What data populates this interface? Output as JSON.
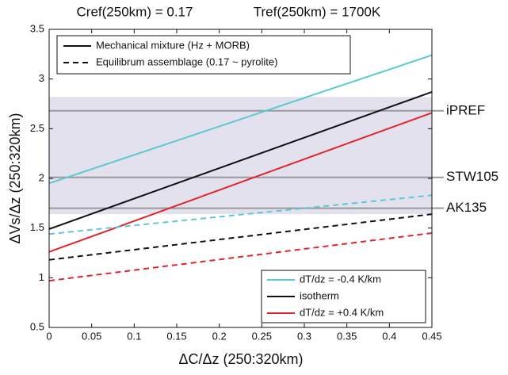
{
  "chart_data": {
    "type": "line",
    "titles": [
      "Cref(250km) = 0.17",
      "Tref(250km) = 1700K"
    ],
    "x_label": "ΔC/Δz (250:320km)",
    "y_label": "ΔVs/Δz (250:320km)",
    "x": [
      0,
      0.45
    ],
    "series": [
      {
        "color": "#5bc8d4",
        "dash": false,
        "values": [
          1.95,
          3.24
        ]
      },
      {
        "color": "#111111",
        "dash": false,
        "values": [
          1.49,
          2.87
        ]
      },
      {
        "color": "#e0262a",
        "dash": false,
        "values": [
          1.26,
          2.66
        ]
      },
      {
        "color": "#5bc8d4",
        "dash": true,
        "values": [
          1.44,
          1.83
        ]
      },
      {
        "color": "#111111",
        "dash": true,
        "values": [
          1.18,
          1.64
        ]
      },
      {
        "color": "#e0262a",
        "dash": true,
        "values": [
          0.97,
          1.45
        ]
      }
    ],
    "style_legend": [
      {
        "label": "Mechanical mixture (Hz + MORB)",
        "dash": false
      },
      {
        "label": "Equilibrum assemblage (0.17 ~ pyrolite)",
        "dash": true
      }
    ],
    "color_legend": [
      {
        "label": "dT/dz = -0.4 K/km",
        "color": "#5bc8d4"
      },
      {
        "label": "isotherm",
        "color": "#111111"
      },
      {
        "label": "dT/dz = +0.4 K/km",
        "color": "#e0262a"
      }
    ],
    "reference_lines": [
      {
        "label": "iPREF",
        "value": 2.68
      },
      {
        "label": "STW105",
        "value": 2.01
      },
      {
        "label": "AK135",
        "value": 1.7
      }
    ],
    "band": [
      1.64,
      2.82
    ],
    "band_color": "#e3e1ee",
    "xlim": [
      0,
      0.45
    ],
    "xticks": [
      0,
      0.05,
      0.1,
      0.15,
      0.2,
      0.25,
      0.3,
      0.35,
      0.4,
      0.45
    ],
    "ylim": [
      0.5,
      3.5
    ],
    "yticks": [
      0.5,
      1,
      1.5,
      2,
      2.5,
      3,
      3.5
    ]
  }
}
